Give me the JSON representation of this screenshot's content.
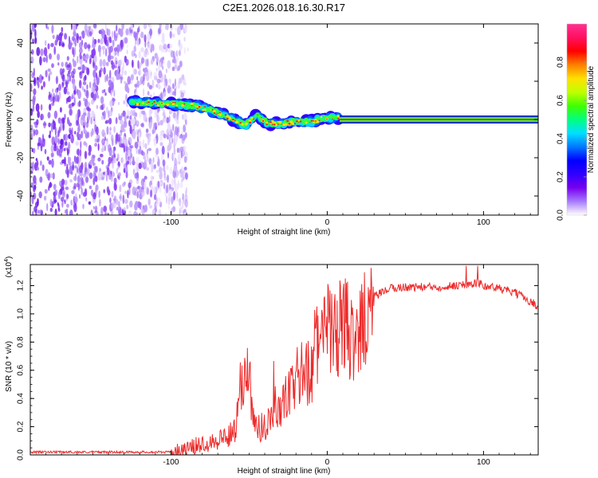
{
  "title": "C2E1.2026.018.16.30.R17",
  "chart_data": [
    {
      "type": "heatmap",
      "panel": "top",
      "xlabel": "Height of straight line (km)",
      "ylabel": "Frequency (Hz)",
      "xlim": [
        -190,
        135
      ],
      "ylim": [
        -50,
        50
      ],
      "xticks": [
        -100,
        0,
        100
      ],
      "yticks": [
        -40,
        -20,
        0,
        20,
        40
      ],
      "xtick_labels": [
        "-100",
        "0",
        "100"
      ],
      "ytick_labels": [
        "-40",
        "-20",
        "0",
        "20",
        "40"
      ],
      "noise_region_x": [
        -190,
        -90
      ],
      "tone_track": {
        "x": [
          -125,
          -115,
          -105,
          -95,
          -85,
          -75,
          -65,
          -58,
          -52,
          -45,
          -38,
          -30,
          -20,
          -10,
          0,
          8
        ],
        "y": [
          9,
          9,
          8,
          8,
          7,
          5,
          2,
          -1,
          -3,
          2,
          -2,
          -2,
          -1,
          -1,
          1,
          1
        ]
      },
      "carrier_line": {
        "x": [
          8,
          135
        ],
        "y": 0
      },
      "colorbar": {
        "label": "Normalized spectral amplitude",
        "range": [
          0,
          1
        ],
        "ticks": [
          0.0,
          0.2,
          0.4,
          0.6,
          0.8
        ],
        "tick_labels": [
          "0.0",
          "0.2",
          "0.4",
          "0.6",
          "0.8"
        ],
        "colors": [
          "#ffffff",
          "#a77bff",
          "#7700ee",
          "#3000ff",
          "#0000ff",
          "#0078ff",
          "#00e0ff",
          "#00ff80",
          "#40ff00",
          "#c0ff00",
          "#ffe000",
          "#ff8000",
          "#ff0000",
          "#ff1060",
          "#ff3090"
        ]
      }
    },
    {
      "type": "line",
      "panel": "bottom",
      "xlabel": "Height of straight line (km)",
      "ylabel": "SNR (10 * v/v)",
      "multiplier_label": "(x10",
      "multiplier_exp": "4",
      "multiplier_close": ")",
      "xlim": [
        -190,
        135
      ],
      "ylim": [
        0,
        1.35
      ],
      "xticks": [
        -100,
        0,
        100
      ],
      "yticks": [
        0.0,
        0.2,
        0.4,
        0.6,
        0.8,
        1.0,
        1.2
      ],
      "xtick_labels": [
        "-100",
        "0",
        "100"
      ],
      "ytick_labels": [
        "0.0",
        "0.2",
        "0.4",
        "0.6",
        "0.8",
        "1.0",
        "1.2"
      ],
      "series": [
        {
          "name": "SNR",
          "color": "#ee2a2a",
          "x": [
            -190,
            -160,
            -130,
            -110,
            -100,
            -90,
            -80,
            -70,
            -60,
            -56,
            -53,
            -50,
            -46,
            -42,
            -38,
            -34,
            -30,
            -26,
            -22,
            -18,
            -14,
            -10,
            -6,
            -2,
            2,
            6,
            10,
            14,
            18,
            22,
            26,
            30,
            40,
            50,
            60,
            70,
            80,
            90,
            96,
            100,
            110,
            120,
            130,
            135
          ],
          "y": [
            0.02,
            0.02,
            0.02,
            0.02,
            0.02,
            0.04,
            0.08,
            0.11,
            0.15,
            0.35,
            0.65,
            0.55,
            0.2,
            0.18,
            0.25,
            0.3,
            0.32,
            0.4,
            0.48,
            0.55,
            0.6,
            0.58,
            0.8,
            0.85,
            0.9,
            0.82,
            0.95,
            0.88,
            0.7,
            0.95,
            1.05,
            1.12,
            1.18,
            1.19,
            1.19,
            1.19,
            1.2,
            1.21,
            1.22,
            1.2,
            1.18,
            1.15,
            1.09,
            1.05
          ]
        }
      ]
    }
  ]
}
